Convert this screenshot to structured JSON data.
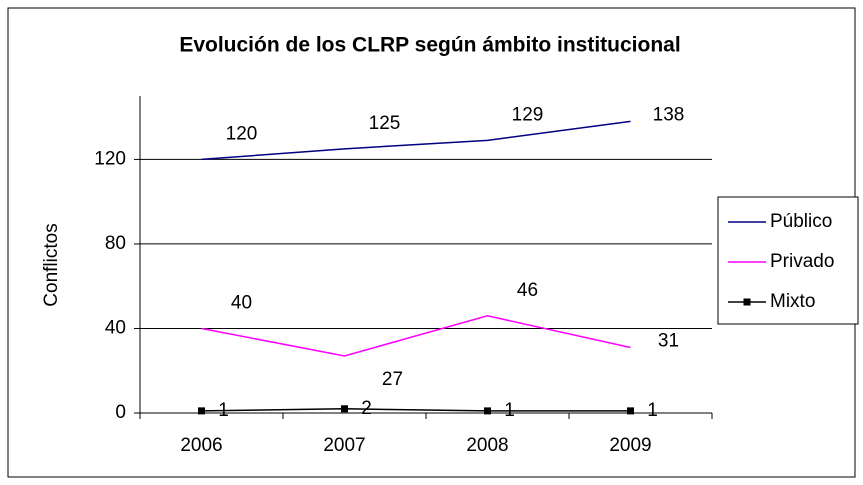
{
  "chart_data": {
    "type": "line",
    "title": "Evolución de los CLRP según ámbito institucional",
    "y_label": "Conflictos",
    "categories": [
      "2006",
      "2007",
      "2008",
      "2009"
    ],
    "series": [
      {
        "name": "Público",
        "color": "#000080",
        "values": [
          120,
          125,
          129,
          138
        ],
        "marker": false
      },
      {
        "name": "Privado",
        "color": "#ff00ff",
        "values": [
          40,
          27,
          46,
          31
        ],
        "marker": false
      },
      {
        "name": "Mixto",
        "color": "#000000",
        "values": [
          1,
          2,
          1,
          1
        ],
        "marker": true
      }
    ],
    "ylim": [
      0,
      150
    ],
    "yticks": [
      0,
      40,
      80,
      120
    ],
    "grid": true,
    "legend": "right"
  }
}
